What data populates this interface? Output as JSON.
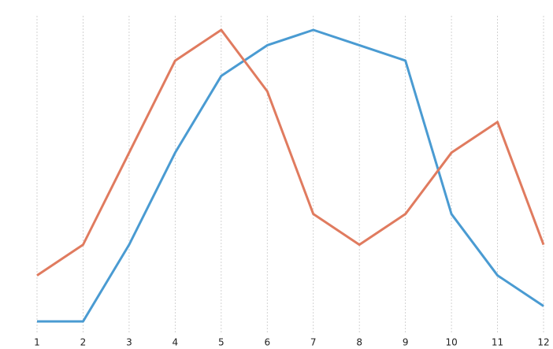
{
  "chart_data": {
    "type": "line",
    "x": [
      1,
      2,
      3,
      4,
      5,
      6,
      7,
      8,
      9,
      10,
      11,
      12
    ],
    "xlim": [
      1,
      12
    ],
    "xticks": [
      1,
      2,
      3,
      4,
      5,
      6,
      7,
      8,
      9,
      10,
      11,
      12
    ],
    "ylim": [
      0,
      19
    ],
    "grid": "x",
    "series": [
      {
        "color": "#4a9bd2",
        "values": [
          0,
          0,
          5,
          11,
          16,
          18,
          19,
          18,
          17,
          7,
          3,
          1
        ]
      },
      {
        "color": "#e07b5f",
        "values": [
          3,
          5,
          11,
          17,
          19,
          15,
          7,
          5,
          7,
          11,
          13,
          5
        ]
      }
    ]
  }
}
